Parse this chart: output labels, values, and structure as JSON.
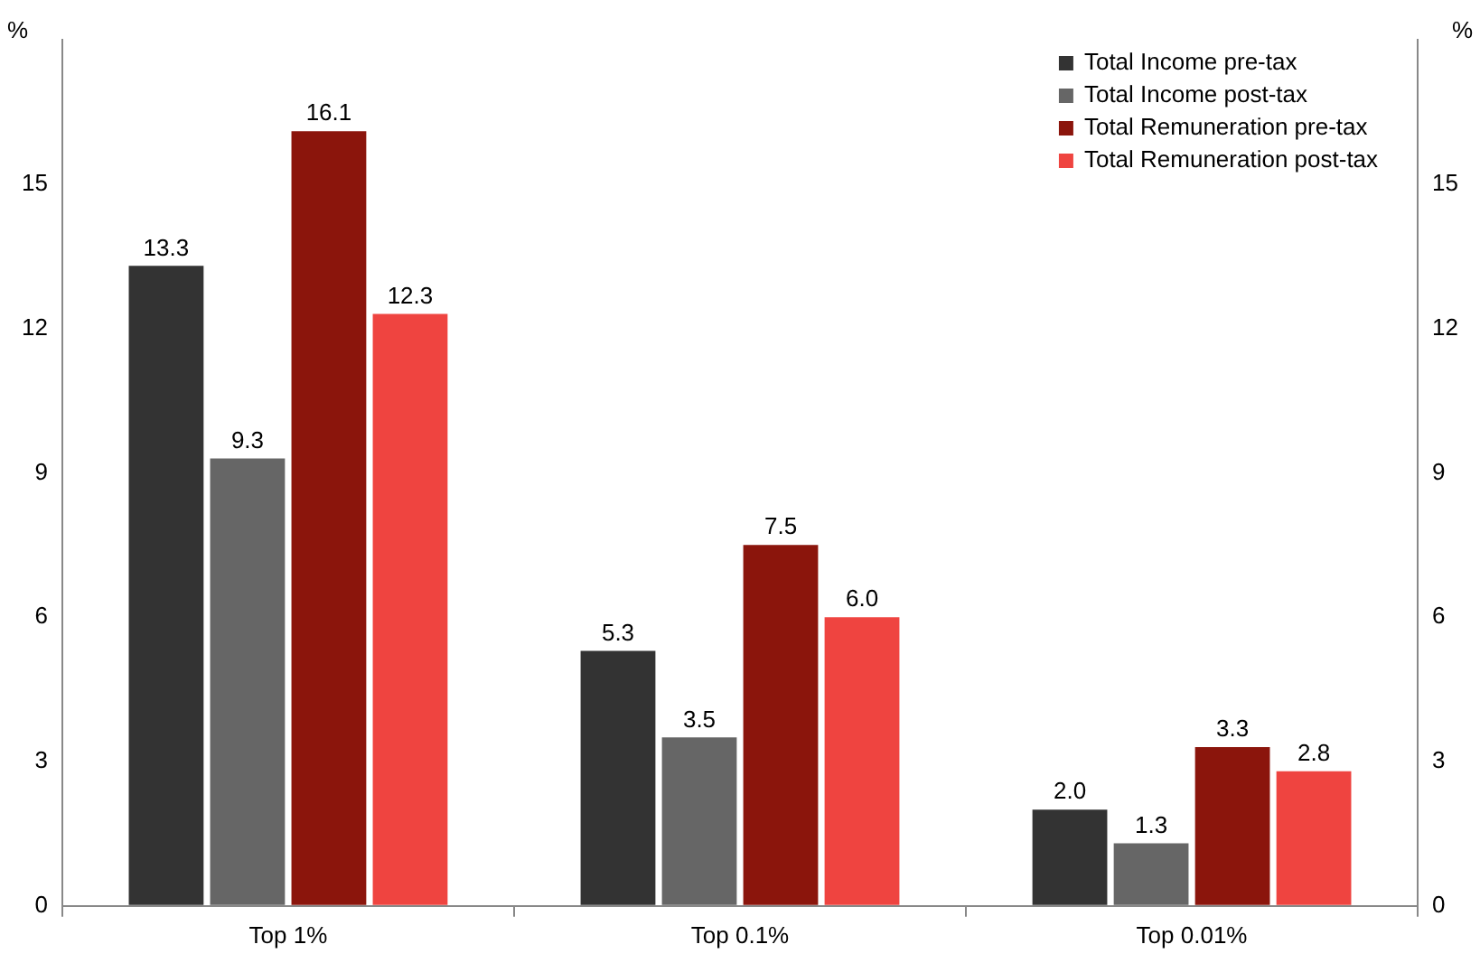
{
  "chart_data": {
    "type": "bar",
    "categories": [
      "Top 1%",
      "Top 0.1%",
      "Top 0.01%"
    ],
    "series": [
      {
        "name": "Total Income pre-tax",
        "color": "#333333",
        "values": [
          13.3,
          5.3,
          2.0
        ],
        "value_labels": [
          "13.3",
          "5.3",
          "2.0"
        ]
      },
      {
        "name": "Total Income post-tax",
        "color": "#666666",
        "values": [
          9.3,
          3.5,
          1.3
        ],
        "value_labels": [
          "9.3",
          "3.5",
          "1.3"
        ]
      },
      {
        "name": "Total Remuneration pre-tax",
        "color": "#8b150c",
        "values": [
          16.1,
          7.5,
          3.3
        ],
        "value_labels": [
          "16.1",
          "7.5",
          "3.3"
        ]
      },
      {
        "name": "Total Remuneration post-tax",
        "color": "#ef4440",
        "values": [
          12.3,
          6.0,
          2.8
        ],
        "value_labels": [
          "12.3",
          "6.0",
          "2.8"
        ]
      }
    ],
    "ylabel": "%",
    "y2label": "%",
    "ylim": [
      0,
      18
    ],
    "yticks": [
      0,
      3,
      6,
      9,
      12,
      15
    ],
    "y2lim": [
      0,
      18
    ],
    "y2ticks": [
      0,
      3,
      6,
      9,
      12,
      15
    ],
    "legend": "top right",
    "grid": false
  }
}
